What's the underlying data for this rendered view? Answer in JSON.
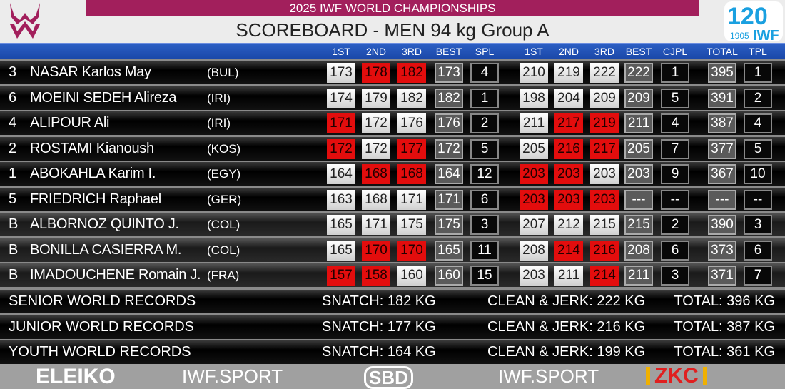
{
  "header": {
    "event": "2025 IWF WORLD CHAMPIONSHIPS",
    "title": "SCOREBOARD - MEN 94 kg Group A",
    "logo_right": "120 Founded 1905 IWF"
  },
  "columns": [
    "1ST",
    "2ND",
    "3RD",
    "BEST",
    "SPL",
    "1ST",
    "2ND",
    "3RD",
    "BEST",
    "CJPL",
    "TOTAL",
    "TPL"
  ],
  "colors": {
    "band": "#a21f5c",
    "header": "#1a47a8",
    "fail": "#e30d0d"
  },
  "athletes": [
    {
      "rank": "3",
      "name": "NASAR Karlos May",
      "country": "(BUL)",
      "snatch": [
        [
          "173",
          "good"
        ],
        [
          "178",
          "fail"
        ],
        [
          "182",
          "fail"
        ]
      ],
      "snatch_best": "173",
      "spl": "4",
      "cj": [
        [
          "210",
          "good"
        ],
        [
          "219",
          "good"
        ],
        [
          "222",
          "good"
        ]
      ],
      "cj_best": "222",
      "cjpl": "1",
      "total": "395",
      "tpl": "1"
    },
    {
      "rank": "6",
      "name": "MOEINI SEDEH Alireza",
      "country": "(IRI)",
      "snatch": [
        [
          "174",
          "good"
        ],
        [
          "179",
          "good"
        ],
        [
          "182",
          "good"
        ]
      ],
      "snatch_best": "182",
      "spl": "1",
      "cj": [
        [
          "198",
          "good"
        ],
        [
          "204",
          "good"
        ],
        [
          "209",
          "good"
        ]
      ],
      "cj_best": "209",
      "cjpl": "5",
      "total": "391",
      "tpl": "2"
    },
    {
      "rank": "4",
      "name": "ALIPOUR Ali",
      "country": "(IRI)",
      "snatch": [
        [
          "171",
          "fail"
        ],
        [
          "172",
          "good"
        ],
        [
          "176",
          "good"
        ]
      ],
      "snatch_best": "176",
      "spl": "2",
      "cj": [
        [
          "211",
          "good"
        ],
        [
          "217",
          "fail"
        ],
        [
          "219",
          "fail"
        ]
      ],
      "cj_best": "211",
      "cjpl": "4",
      "total": "387",
      "tpl": "4"
    },
    {
      "rank": "2",
      "name": "ROSTAMI Kianoush",
      "country": "(KOS)",
      "snatch": [
        [
          "172",
          "fail"
        ],
        [
          "172",
          "good"
        ],
        [
          "177",
          "fail"
        ]
      ],
      "snatch_best": "172",
      "spl": "5",
      "cj": [
        [
          "205",
          "good"
        ],
        [
          "216",
          "fail"
        ],
        [
          "217",
          "fail"
        ]
      ],
      "cj_best": "205",
      "cjpl": "7",
      "total": "377",
      "tpl": "5"
    },
    {
      "rank": "1",
      "name": "ABOKAHLA Karim I.",
      "country": "(EGY)",
      "snatch": [
        [
          "164",
          "good"
        ],
        [
          "168",
          "fail"
        ],
        [
          "168",
          "fail"
        ]
      ],
      "snatch_best": "164",
      "spl": "12",
      "cj": [
        [
          "203",
          "fail"
        ],
        [
          "203",
          "fail"
        ],
        [
          "203",
          "good"
        ]
      ],
      "cj_best": "203",
      "cjpl": "9",
      "total": "367",
      "tpl": "10"
    },
    {
      "rank": "5",
      "name": "FRIEDRICH Raphael",
      "country": "(GER)",
      "snatch": [
        [
          "163",
          "good"
        ],
        [
          "168",
          "good"
        ],
        [
          "171",
          "good"
        ]
      ],
      "snatch_best": "171",
      "spl": "6",
      "cj": [
        [
          "203",
          "fail"
        ],
        [
          "203",
          "fail"
        ],
        [
          "203",
          "fail"
        ]
      ],
      "cj_best": "---",
      "cjpl": "--",
      "total": "---",
      "tpl": "--"
    },
    {
      "rank": "B",
      "name": "ALBORNOZ QUINTO J.",
      "country": "(COL)",
      "snatch": [
        [
          "165",
          "good"
        ],
        [
          "171",
          "good"
        ],
        [
          "175",
          "good"
        ]
      ],
      "snatch_best": "175",
      "spl": "3",
      "cj": [
        [
          "207",
          "good"
        ],
        [
          "212",
          "good"
        ],
        [
          "215",
          "good"
        ]
      ],
      "cj_best": "215",
      "cjpl": "2",
      "total": "390",
      "tpl": "3"
    },
    {
      "rank": "B",
      "name": "BONILLA CASIERRA M.",
      "country": "(COL)",
      "snatch": [
        [
          "165",
          "good"
        ],
        [
          "170",
          "fail"
        ],
        [
          "170",
          "fail"
        ]
      ],
      "snatch_best": "165",
      "spl": "11",
      "cj": [
        [
          "208",
          "good"
        ],
        [
          "214",
          "fail"
        ],
        [
          "216",
          "fail"
        ]
      ],
      "cj_best": "208",
      "cjpl": "6",
      "total": "373",
      "tpl": "6"
    },
    {
      "rank": "B",
      "name": "IMADOUCHENE Romain J.",
      "country": "(FRA)",
      "snatch": [
        [
          "157",
          "fail"
        ],
        [
          "158",
          "fail"
        ],
        [
          "160",
          "good"
        ]
      ],
      "snatch_best": "160",
      "spl": "15",
      "cj": [
        [
          "203",
          "good"
        ],
        [
          "211",
          "good"
        ],
        [
          "214",
          "fail"
        ]
      ],
      "cj_best": "211",
      "cjpl": "3",
      "total": "371",
      "tpl": "7"
    }
  ],
  "records": [
    {
      "label": "SENIOR WORLD RECORDS",
      "snatch": "SNATCH: 182 KG",
      "cj": "CLEAN & JERK: 222 KG",
      "total": "TOTAL: 396 KG"
    },
    {
      "label": "JUNIOR WORLD RECORDS",
      "snatch": "SNATCH: 177 KG",
      "cj": "CLEAN & JERK: 216 KG",
      "total": "TOTAL: 387 KG"
    },
    {
      "label": "YOUTH WORLD RECORDS",
      "snatch": "SNATCH: 164 KG",
      "cj": "CLEAN & JERK: 199 KG",
      "total": "TOTAL: 361 KG"
    }
  ],
  "sponsors": [
    "ELEIKO",
    "IWF.SPORT",
    "SBD",
    "IWF.SPORT",
    "ZKC"
  ]
}
